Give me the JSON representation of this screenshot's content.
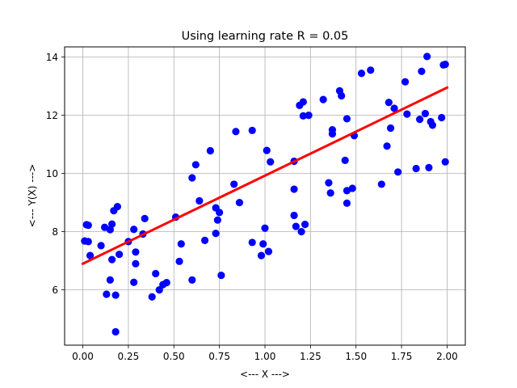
{
  "chart_data": {
    "type": "scatter",
    "title": "Using learning rate R = 0.05",
    "xlabel": "<--- X --->",
    "ylabel": "<--- Y(X) --->",
    "xlim": [
      -0.1,
      2.1
    ],
    "ylim": [
      4.1,
      14.35
    ],
    "xticks": [
      0.0,
      0.25,
      0.5,
      0.75,
      1.0,
      1.25,
      1.5,
      1.75,
      2.0
    ],
    "xtick_labels": [
      "0.00",
      "0.25",
      "0.50",
      "0.75",
      "1.00",
      "1.25",
      "1.50",
      "1.75",
      "2.00"
    ],
    "yticks": [
      6,
      8,
      10,
      12,
      14
    ],
    "ytick_labels": [
      "6",
      "8",
      "10",
      "12",
      "14"
    ],
    "grid": true,
    "points_color": "#0000ff",
    "line_color": "#ff0000",
    "points": [
      [
        0.01,
        7.68
      ],
      [
        0.02,
        8.24
      ],
      [
        0.03,
        7.66
      ],
      [
        0.03,
        8.22
      ],
      [
        0.04,
        7.18
      ],
      [
        0.1,
        7.52
      ],
      [
        0.12,
        8.15
      ],
      [
        0.13,
        5.85
      ],
      [
        0.15,
        6.34
      ],
      [
        0.15,
        8.07
      ],
      [
        0.16,
        8.26
      ],
      [
        0.16,
        7.04
      ],
      [
        0.17,
        8.72
      ],
      [
        0.18,
        4.56
      ],
      [
        0.18,
        5.82
      ],
      [
        0.19,
        8.86
      ],
      [
        0.2,
        7.22
      ],
      [
        0.25,
        7.66
      ],
      [
        0.28,
        8.08
      ],
      [
        0.28,
        6.26
      ],
      [
        0.29,
        7.3
      ],
      [
        0.29,
        6.9
      ],
      [
        0.33,
        7.92
      ],
      [
        0.34,
        8.45
      ],
      [
        0.38,
        5.76
      ],
      [
        0.4,
        6.56
      ],
      [
        0.42,
        6.0
      ],
      [
        0.44,
        6.18
      ],
      [
        0.46,
        6.25
      ],
      [
        0.51,
        8.5
      ],
      [
        0.53,
        6.98
      ],
      [
        0.54,
        7.58
      ],
      [
        0.6,
        9.85
      ],
      [
        0.6,
        6.34
      ],
      [
        0.62,
        10.3
      ],
      [
        0.64,
        9.06
      ],
      [
        0.67,
        7.7
      ],
      [
        0.7,
        10.78
      ],
      [
        0.73,
        8.82
      ],
      [
        0.73,
        7.94
      ],
      [
        0.74,
        8.4
      ],
      [
        0.75,
        8.66
      ],
      [
        0.76,
        6.5
      ],
      [
        0.83,
        9.63
      ],
      [
        0.84,
        11.44
      ],
      [
        0.86,
        9.0
      ],
      [
        0.93,
        11.48
      ],
      [
        0.93,
        7.63
      ],
      [
        0.98,
        7.18
      ],
      [
        0.99,
        7.58
      ],
      [
        1.0,
        8.12
      ],
      [
        1.01,
        10.79
      ],
      [
        1.02,
        7.32
      ],
      [
        1.03,
        10.4
      ],
      [
        1.16,
        9.46
      ],
      [
        1.16,
        8.56
      ],
      [
        1.16,
        10.42
      ],
      [
        1.17,
        8.18
      ],
      [
        1.19,
        12.34
      ],
      [
        1.2,
        8.0
      ],
      [
        1.21,
        11.98
      ],
      [
        1.21,
        12.46
      ],
      [
        1.22,
        8.25
      ],
      [
        1.24,
        12.0
      ],
      [
        1.32,
        12.54
      ],
      [
        1.35,
        9.68
      ],
      [
        1.36,
        9.33
      ],
      [
        1.37,
        11.5
      ],
      [
        1.37,
        11.36
      ],
      [
        1.41,
        12.84
      ],
      [
        1.42,
        12.67
      ],
      [
        1.44,
        10.45
      ],
      [
        1.45,
        11.88
      ],
      [
        1.45,
        9.41
      ],
      [
        1.45,
        8.98
      ],
      [
        1.48,
        9.49
      ],
      [
        1.49,
        11.3
      ],
      [
        1.53,
        13.44
      ],
      [
        1.58,
        13.55
      ],
      [
        1.64,
        9.63
      ],
      [
        1.67,
        10.94
      ],
      [
        1.68,
        12.44
      ],
      [
        1.69,
        11.56
      ],
      [
        1.71,
        12.24
      ],
      [
        1.73,
        10.05
      ],
      [
        1.77,
        13.15
      ],
      [
        1.78,
        12.04
      ],
      [
        1.83,
        10.17
      ],
      [
        1.85,
        11.86
      ],
      [
        1.86,
        13.51
      ],
      [
        1.88,
        12.06
      ],
      [
        1.89,
        14.02
      ],
      [
        1.9,
        10.2
      ],
      [
        1.91,
        11.78
      ],
      [
        1.92,
        11.66
      ],
      [
        1.97,
        11.92
      ],
      [
        1.98,
        13.73
      ],
      [
        1.99,
        13.75
      ],
      [
        1.99,
        10.4
      ]
    ],
    "line": {
      "x": [
        0.0,
        2.0
      ],
      "y": [
        6.9,
        12.95
      ]
    }
  }
}
